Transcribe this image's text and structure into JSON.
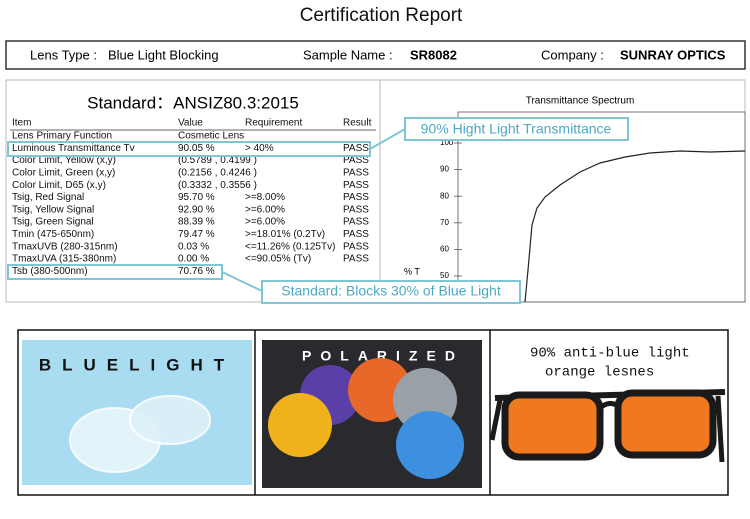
{
  "header": {
    "title": "Certification Report"
  },
  "info": [
    {
      "label": "Lens Type :",
      "value": "Blue Light Blocking"
    },
    {
      "label": "Sample Name :",
      "value": "SR8082"
    },
    {
      "label": "Company :",
      "value": "SUNRAY OPTICS"
    }
  ],
  "report": {
    "standard": "Standard：ANSIZ80.3:2015",
    "columns": [
      "Item",
      "Value",
      "Requirement",
      "Result"
    ],
    "rows": [
      {
        "item": "Lens Primary Function",
        "value": "Cosmetic Lens"
      },
      {
        "item": "Luminous Transmittance Tv",
        "value": "90.05 %",
        "requirement": "> 40%",
        "result": "PASS"
      },
      {
        "item": "Color Limit, Yellow (x,y)",
        "value": "(0.5789 , 0.4199 )",
        "result": "PASS"
      },
      {
        "item": "Color Limit, Green (x,y)",
        "value": "(0.2156 , 0.4246 )",
        "result": "PASS"
      },
      {
        "item": "Color Limit, D65 (x,y)",
        "value": "(0.3332 , 0.3556 )",
        "result": "PASS"
      },
      {
        "item": "Tsig, Red Signal",
        "value": "95.70 %",
        "requirement": ">=8.00%",
        "result": "PASS"
      },
      {
        "item": "Tsig, Yellow Signal",
        "value": "92.90 %",
        "requirement": ">=6.00%",
        "result": "PASS"
      },
      {
        "item": "Tsig, Green Signal",
        "value": "88.39 %",
        "requirement": ">=6.00%",
        "result": "PASS"
      },
      {
        "item": "Tmin (475-650nm)",
        "value": "79.47 %",
        "requirement": ">=18.01% (0.2Tv)",
        "result": "PASS"
      },
      {
        "item": "TmaxUVB (280-315nm)",
        "value": "0.03 %",
        "requirement": "<=11.26% (0.125Tv)",
        "result": "PASS"
      },
      {
        "item": "TmaxUVA (315-380nm)",
        "value": "0.00 %",
        "requirement": "<=90.05% (Tv)",
        "result": "PASS"
      },
      {
        "item": "Tsb (380-500nm)",
        "value": "70.76 %"
      }
    ],
    "callouts": [
      "90% Hight Light Transmittance",
      "Standard: Blocks 30% of Blue Light"
    ]
  },
  "spectrum": {
    "title": "Transmittance Spectrum",
    "axis_label": "% T",
    "yticks": [
      100,
      90,
      80,
      70,
      60,
      50
    ]
  },
  "panels": [
    {
      "label": "BLUELIGHT"
    },
    {
      "label": "POLARIZED"
    },
    {
      "lines": [
        "90% anti-blue light",
        "orange lesnes"
      ]
    }
  ]
}
